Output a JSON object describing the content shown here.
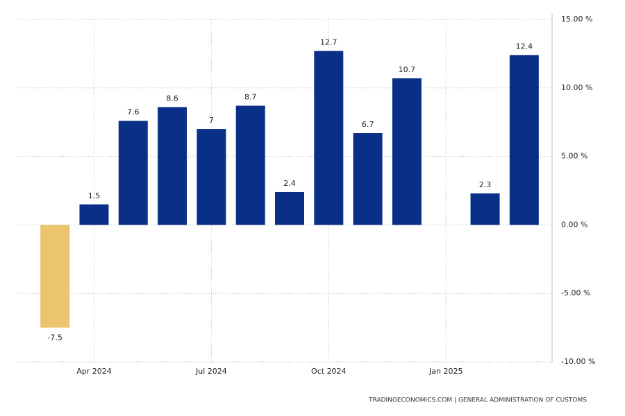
{
  "chart_data": {
    "type": "bar",
    "categories": [
      null,
      "Apr 2024",
      null,
      null,
      "Jul 2024",
      null,
      null,
      "Oct 2024",
      null,
      null,
      "Jan 2025",
      null,
      null
    ],
    "values": [
      -7.5,
      1.5,
      7.6,
      8.6,
      7,
      8.7,
      2.4,
      12.7,
      6.7,
      10.7,
      null,
      2.3,
      12.4
    ],
    "color": "#0a2f87",
    "negative_color": "#ecc46f",
    "ylim": [
      -10,
      15
    ],
    "yticks": [
      {
        "value": -10,
        "label": "-10.00 %"
      },
      {
        "value": -5,
        "label": "-5.00 %"
      },
      {
        "value": 0,
        "label": "0.00 %"
      },
      {
        "value": 5,
        "label": "5.00 %"
      },
      {
        "value": 10,
        "label": "10.00 %"
      },
      {
        "value": 15,
        "label": "15.00 %"
      }
    ],
    "grid": true,
    "source": "TRADINGECONOMICS.COM | GENERAL ADMINISTRATION OF CUSTOMS"
  }
}
